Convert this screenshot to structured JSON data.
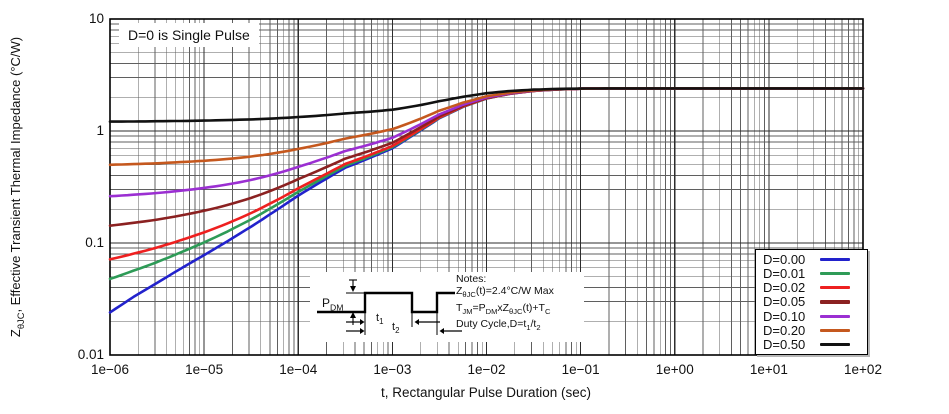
{
  "chart_data": {
    "type": "line",
    "title": "",
    "xlabel": "t, Rectangular Pulse Duration (sec)",
    "ylabel": "Z~θJC~, Effective Transient Thermal Impedance (°C/W)",
    "x_scale": "log",
    "y_scale": "log",
    "xlim_log10": [
      -6,
      2
    ],
    "ylim": [
      0.01,
      10
    ],
    "grid": "major and minor log gridlines on",
    "legend_position": "bottom-right",
    "x_ticks": [
      "1e−06",
      "1e−05",
      "1e−04",
      "1e−03",
      "1e−02",
      "1e−01",
      "1e+00",
      "1e+01",
      "1e+02"
    ],
    "y_tick_labels": [
      "10",
      "1",
      "0.1",
      "0.01"
    ],
    "y_tick_values": [
      10,
      1,
      0.1,
      0.01
    ],
    "zjc_max_c_per_w": 2.4,
    "single_pulse_points": {
      "log10_t": [
        -6,
        -5.75,
        -5.5,
        -5.25,
        -5,
        -4.75,
        -4.5,
        -4.25,
        -4,
        -3.75,
        -3.5,
        -3.25,
        -3,
        -2.75,
        -2.5,
        -2.25,
        -2,
        -1.75,
        -1.5,
        -1.25,
        -1,
        -0.75,
        -0.5,
        0,
        1,
        2
      ],
      "z": [
        0.024,
        0.033,
        0.044,
        0.059,
        0.078,
        0.104,
        0.14,
        0.192,
        0.265,
        0.355,
        0.47,
        0.57,
        0.7,
        0.95,
        1.3,
        1.64,
        1.95,
        2.15,
        2.28,
        2.35,
        2.385,
        2.398,
        2.4,
        2.4,
        2.4,
        2.4
      ]
    },
    "decades_log10_t": [
      -6,
      -5,
      -4,
      -3,
      -2,
      -1,
      0,
      1,
      2
    ],
    "series": [
      {
        "label": "D=0.00",
        "duty": 0.0,
        "color": "#2222cc",
        "values_at_decades": [
          0.024,
          0.078,
          0.265,
          0.7,
          1.95,
          2.39,
          2.4,
          2.4,
          2.4
        ]
      },
      {
        "label": "D=0.01",
        "duty": 0.01,
        "color": "#2e9b57",
        "values_at_decades": [
          0.048,
          0.101,
          0.286,
          0.717,
          1.955,
          2.39,
          2.4,
          2.4,
          2.4
        ]
      },
      {
        "label": "D=0.02",
        "duty": 0.02,
        "color": "#ee2020",
        "values_at_decades": [
          0.072,
          0.124,
          0.308,
          0.734,
          1.96,
          2.39,
          2.4,
          2.4,
          2.4
        ]
      },
      {
        "label": "D=0.05",
        "duty": 0.05,
        "color": "#8b2121",
        "values_at_decades": [
          0.143,
          0.194,
          0.372,
          0.785,
          1.973,
          2.39,
          2.4,
          2.4,
          2.4
        ]
      },
      {
        "label": "D=0.10",
        "duty": 0.1,
        "color": "#9b2fd2",
        "values_at_decades": [
          0.262,
          0.31,
          0.479,
          0.87,
          1.995,
          2.39,
          2.4,
          2.4,
          2.4
        ]
      },
      {
        "label": "D=0.20",
        "duty": 0.2,
        "color": "#c5581e",
        "values_at_decades": [
          0.499,
          0.542,
          0.692,
          1.04,
          2.04,
          2.39,
          2.4,
          2.4,
          2.4
        ]
      },
      {
        "label": "D=0.50",
        "duty": 0.5,
        "color": "#111111",
        "values_at_decades": [
          1.212,
          1.239,
          1.333,
          1.55,
          2.175,
          2.39,
          2.4,
          2.4,
          2.4
        ]
      }
    ]
  },
  "annotations": {
    "single_pulse": "D=0 is Single Pulse"
  },
  "inset": {
    "pdm_label": "P~DM~",
    "t1_label": "t~1~",
    "t2_label": "t~2~",
    "notes_title": "Notes:",
    "notes_lines": [
      "Z~θJC~(t)=2.4°C/W Max",
      "T~JM~=P~DM~xZ~θJC~(t)+T~C~",
      "Duty Cycle,D=t~1~/t~2~"
    ]
  },
  "colors": {
    "grid_minor": "#5f5f5f",
    "grid_major": "#2d2d2d",
    "border": "#000000",
    "background": "#ffffff"
  }
}
